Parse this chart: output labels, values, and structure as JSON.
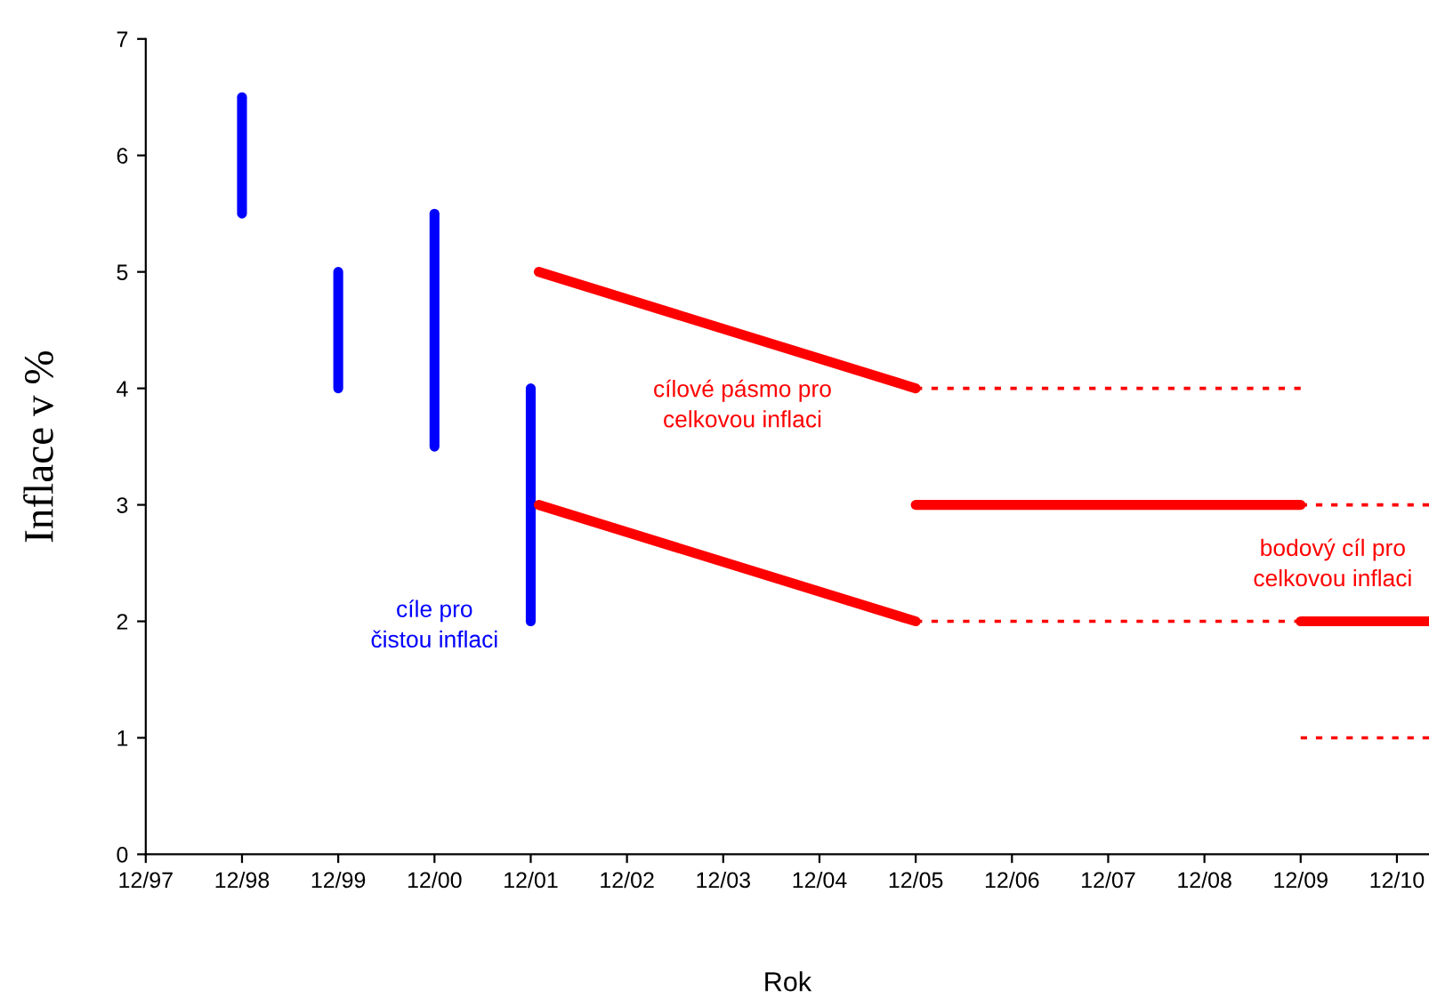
{
  "chart_data": {
    "type": "line",
    "xlabel": "Rok",
    "ylabel": "Inflace v %",
    "xlim": [
      "1997-12",
      "2011-04"
    ],
    "xticks": [
      {
        "value": "1997-12",
        "label": "12/97"
      },
      {
        "value": "1998-12",
        "label": "12/98"
      },
      {
        "value": "1999-12",
        "label": "12/99"
      },
      {
        "value": "2000-12",
        "label": "12/00"
      },
      {
        "value": "2001-12",
        "label": "12/01"
      },
      {
        "value": "2002-12",
        "label": "12/02"
      },
      {
        "value": "2003-12",
        "label": "12/03"
      },
      {
        "value": "2004-12",
        "label": "12/04"
      },
      {
        "value": "2005-12",
        "label": "12/05"
      },
      {
        "value": "2006-12",
        "label": "12/06"
      },
      {
        "value": "2007-12",
        "label": "12/07"
      },
      {
        "value": "2008-12",
        "label": "12/08"
      },
      {
        "value": "2009-12",
        "label": "12/09"
      },
      {
        "value": "2010-12",
        "label": "12/10"
      }
    ],
    "ylim": [
      0,
      7
    ],
    "yticks": [
      0,
      1,
      2,
      3,
      4,
      5,
      6,
      7
    ],
    "grid": false,
    "legend": false,
    "marker": "none",
    "series": [
      {
        "color": "#0000ff",
        "x": [
          "1998-12",
          "1998-12"
        ],
        "values": [
          5.5,
          6.5
        ],
        "line_style": "solid"
      },
      {
        "color": "#0000ff",
        "x": [
          "1999-12",
          "1999-12"
        ],
        "values": [
          4,
          5
        ],
        "line_style": "solid"
      },
      {
        "color": "#0000ff",
        "x": [
          "2000-12",
          "2000-12"
        ],
        "values": [
          3.5,
          5.5
        ],
        "line_style": "solid"
      },
      {
        "color": "#0000ff",
        "x": [
          "2001-12",
          "2001-12"
        ],
        "values": [
          2,
          4
        ],
        "line_style": "solid"
      },
      {
        "color": "#ff0000",
        "x": [
          "2002-01",
          "2005-12"
        ],
        "values": [
          5,
          4
        ],
        "line_style": "solid"
      },
      {
        "color": "#ff0000",
        "x": [
          "2002-01",
          "2005-12"
        ],
        "values": [
          3,
          2
        ],
        "line_style": "solid"
      },
      {
        "color": "#ff0000",
        "x": [
          "2005-12",
          "2009-12"
        ],
        "values": [
          4,
          4
        ],
        "line_style": "dotted"
      },
      {
        "color": "#ff0000",
        "x": [
          "2005-12",
          "2009-12"
        ],
        "values": [
          2,
          2
        ],
        "line_style": "dotted"
      },
      {
        "color": "#ff0000",
        "x": [
          "2005-12",
          "2009-12"
        ],
        "values": [
          3,
          3
        ],
        "line_style": "solid"
      },
      {
        "color": "#ff0000",
        "x": [
          "2009-12",
          "2011-04"
        ],
        "values": [
          3,
          3
        ],
        "line_style": "dotted"
      },
      {
        "color": "#ff0000",
        "x": [
          "2009-12",
          "2011-04"
        ],
        "values": [
          2,
          2
        ],
        "line_style": "solid"
      },
      {
        "color": "#ff0000",
        "x": [
          "2009-12",
          "2011-04"
        ],
        "values": [
          1,
          1
        ],
        "line_style": "dotted"
      }
    ],
    "annotations": [
      "cíle pro\nčistou inflaci",
      "cílové pásmo pro\ncelkovou inflaci",
      "bodový cíl pro\ncelkovou inflaci"
    ]
  }
}
